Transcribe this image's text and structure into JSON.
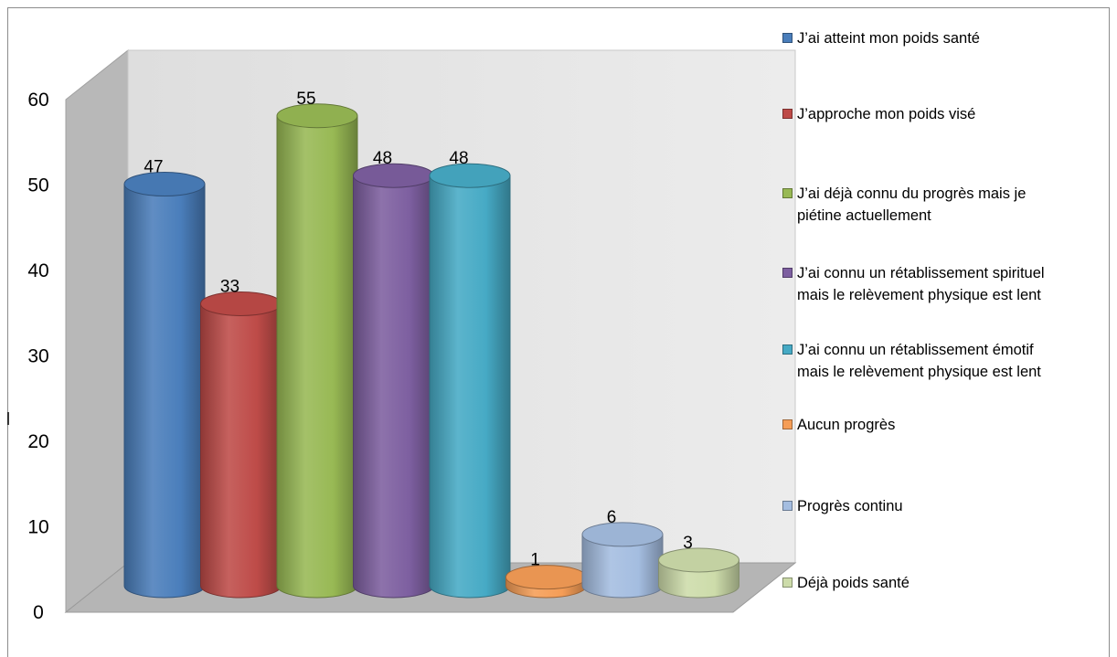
{
  "chart_data": {
    "type": "bar",
    "title": "",
    "xlabel": "",
    "ylabel": "",
    "ylim": [
      0,
      60
    ],
    "yticks": [
      0,
      10,
      20,
      30,
      40,
      50,
      60
    ],
    "grid": false,
    "legend_position": "right",
    "three_d": true,
    "bar_shape": "cylinder",
    "series": [
      {
        "name": "J’ai atteint mon poids santé",
        "value": 47,
        "color": "#4a7ebb"
      },
      {
        "name": "J’approche mon poids visé",
        "value": 33,
        "color": "#be4b48"
      },
      {
        "name": "J’ai déjà connu du progrès mais je piétine actuellement",
        "value": 55,
        "color": "#98b954"
      },
      {
        "name": "J’ai connu un rétablissement spirituel mais le relèvement physique est lent",
        "value": 48,
        "color": "#7d5fa0"
      },
      {
        "name": "J’ai connu un rétablissement émotif mais le relèvement physique est lent",
        "value": 48,
        "color": "#46aac5"
      },
      {
        "name": "Aucun progrès",
        "value": 1,
        "color": "#f59d56"
      },
      {
        "name": "Progrès continu",
        "value": 6,
        "color": "#a4bde0"
      },
      {
        "name": "Déjà poids santé",
        "value": 3,
        "color": "#cddcaa"
      }
    ]
  },
  "legend": {
    "items": [
      {
        "lines": [
          "J’ai atteint mon poids santé"
        ],
        "color": "#4a7ebb"
      },
      {
        "lines": [
          "J’approche mon poids visé"
        ],
        "color": "#be4b48"
      },
      {
        "lines": [
          "J’ai déjà connu du progrès mais je",
          "piétine actuellement"
        ],
        "color": "#98b954"
      },
      {
        "lines": [
          "J’ai connu un rétablissement spirituel",
          "mais le relèvement physique est lent"
        ],
        "color": "#7d5fa0"
      },
      {
        "lines": [
          "J’ai connu un rétablissement émotif",
          "mais le relèvement physique est lent"
        ],
        "color": "#46aac5"
      },
      {
        "lines": [
          "Aucun progrès"
        ],
        "color": "#f59d56"
      },
      {
        "lines": [
          "Progrès continu"
        ],
        "color": "#a4bde0"
      },
      {
        "lines": [
          " Déjà poids santé"
        ],
        "color": "#cddcaa"
      }
    ]
  }
}
